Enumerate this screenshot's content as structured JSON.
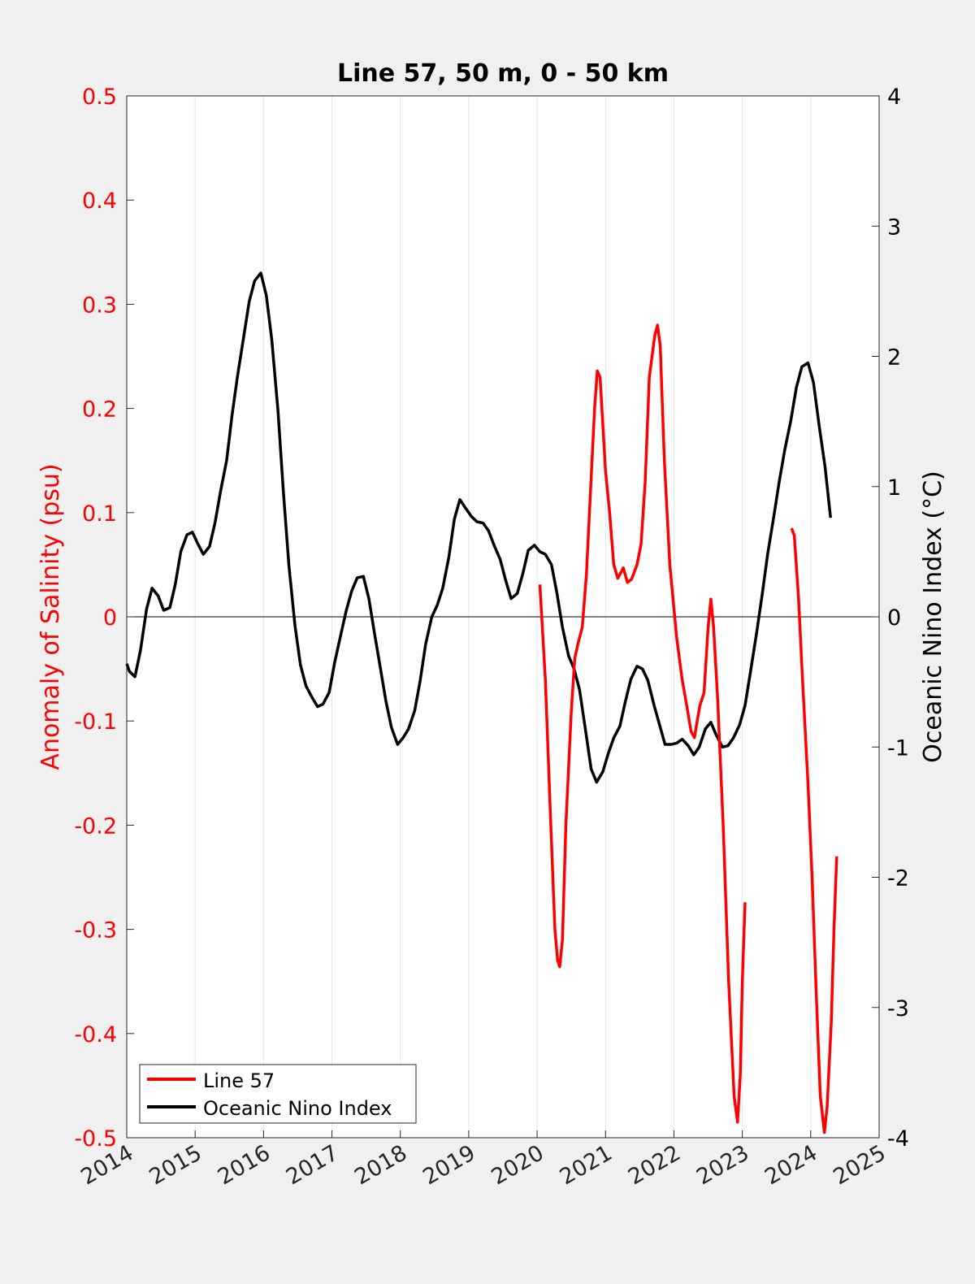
{
  "chart_data": {
    "type": "line",
    "title": "Line 57, 50 m, 0 - 50 km",
    "xlim": [
      2014,
      2025
    ],
    "x_ticks": [
      "2014",
      "2015",
      "2016",
      "2017",
      "2018",
      "2019",
      "2020",
      "2021",
      "2022",
      "2023",
      "2024",
      "2025"
    ],
    "left_axis": {
      "label": "Anomaly of Salinity (psu)",
      "color": "#ff0000",
      "ylim": [
        -0.5,
        0.5
      ],
      "ticks": [
        0.5,
        0.4,
        0.3,
        0.2,
        0.1,
        0,
        -0.1,
        -0.2,
        -0.3,
        -0.4,
        -0.5
      ],
      "tick_labels": [
        "0.5",
        "0.4",
        "0.3",
        "0.2",
        "0.1",
        "0",
        "-0.1",
        "-0.2",
        "-0.3",
        "-0.4",
        "-0.5"
      ]
    },
    "right_axis": {
      "label": "Oceanic Nino Index (°C)",
      "color": "#000000",
      "ylim": [
        -4,
        4
      ],
      "ticks": [
        4,
        3,
        2,
        1,
        0,
        -1,
        -2,
        -3,
        -4
      ],
      "tick_labels": [
        "4",
        "3",
        "2",
        "1",
        "0",
        "-1",
        "-2",
        "-3",
        "-4"
      ]
    },
    "zero_line": true,
    "vertical_grid": true,
    "legend": {
      "position": "bottom-left",
      "entries": [
        {
          "label": "Line 57",
          "color": "#ff0000"
        },
        {
          "label": "Oceanic Nino Index",
          "color": "#000000"
        }
      ]
    },
    "series": [
      {
        "name": "Line 57",
        "axis": "left",
        "color": "#ff0000",
        "segments": [
          [
            [
              2020.04,
              0.031
            ],
            [
              2020.12,
              -0.06
            ],
            [
              2020.2,
              -0.2
            ],
            [
              2020.26,
              -0.3
            ],
            [
              2020.3,
              -0.33
            ],
            [
              2020.33,
              -0.336
            ],
            [
              2020.37,
              -0.31
            ],
            [
              2020.42,
              -0.2
            ],
            [
              2020.5,
              -0.09
            ],
            [
              2020.55,
              -0.04
            ],
            [
              2020.6,
              -0.025
            ],
            [
              2020.66,
              -0.01
            ],
            [
              2020.72,
              0.04
            ],
            [
              2020.78,
              0.12
            ],
            [
              2020.84,
              0.2
            ],
            [
              2020.88,
              0.236
            ],
            [
              2020.92,
              0.23
            ],
            [
              2021.0,
              0.14
            ],
            [
              2021.06,
              0.1
            ],
            [
              2021.12,
              0.05
            ],
            [
              2021.18,
              0.037
            ],
            [
              2021.26,
              0.047
            ],
            [
              2021.32,
              0.033
            ],
            [
              2021.38,
              0.036
            ],
            [
              2021.46,
              0.05
            ],
            [
              2021.52,
              0.07
            ],
            [
              2021.58,
              0.13
            ],
            [
              2021.64,
              0.23
            ],
            [
              2021.72,
              0.27
            ],
            [
              2021.76,
              0.28
            ],
            [
              2021.8,
              0.26
            ],
            [
              2021.86,
              0.15
            ],
            [
              2021.94,
              0.05
            ],
            [
              2022.04,
              -0.02
            ],
            [
              2022.12,
              -0.06
            ],
            [
              2022.2,
              -0.09
            ],
            [
              2022.25,
              -0.11
            ],
            [
              2022.3,
              -0.116
            ],
            [
              2022.34,
              -0.1
            ],
            [
              2022.38,
              -0.085
            ],
            [
              2022.44,
              -0.073
            ],
            [
              2022.5,
              -0.01
            ],
            [
              2022.54,
              0.017
            ],
            [
              2022.58,
              -0.01
            ],
            [
              2022.64,
              -0.08
            ],
            [
              2022.72,
              -0.2
            ],
            [
              2022.8,
              -0.35
            ],
            [
              2022.88,
              -0.46
            ],
            [
              2022.93,
              -0.485
            ],
            [
              2022.97,
              -0.44
            ],
            [
              2023.0,
              -0.35
            ],
            [
              2023.04,
              -0.274
            ]
          ],
          [
            [
              2023.72,
              0.085
            ],
            [
              2023.76,
              0.078
            ],
            [
              2023.82,
              0.02
            ],
            [
              2023.88,
              -0.06
            ],
            [
              2023.96,
              -0.16
            ],
            [
              2024.02,
              -0.25
            ],
            [
              2024.08,
              -0.36
            ],
            [
              2024.14,
              -0.46
            ],
            [
              2024.2,
              -0.495
            ],
            [
              2024.24,
              -0.47
            ],
            [
              2024.3,
              -0.39
            ],
            [
              2024.34,
              -0.3
            ],
            [
              2024.38,
              -0.23
            ]
          ]
        ]
      },
      {
        "name": "Oceanic Nino Index",
        "axis": "right",
        "color": "#000000",
        "points": [
          [
            2014.0,
            -0.36
          ],
          [
            2014.04,
            -0.42
          ],
          [
            2014.12,
            -0.46
          ],
          [
            2014.2,
            -0.26
          ],
          [
            2014.29,
            0.06
          ],
          [
            2014.37,
            0.22
          ],
          [
            2014.46,
            0.16
          ],
          [
            2014.54,
            0.05
          ],
          [
            2014.63,
            0.07
          ],
          [
            2014.71,
            0.25
          ],
          [
            2014.79,
            0.5
          ],
          [
            2014.88,
            0.63
          ],
          [
            2014.96,
            0.65
          ],
          [
            2015.04,
            0.56
          ],
          [
            2015.12,
            0.48
          ],
          [
            2015.21,
            0.54
          ],
          [
            2015.29,
            0.72
          ],
          [
            2015.37,
            0.96
          ],
          [
            2015.46,
            1.2
          ],
          [
            2015.54,
            1.55
          ],
          [
            2015.62,
            1.85
          ],
          [
            2015.71,
            2.15
          ],
          [
            2015.79,
            2.42
          ],
          [
            2015.87,
            2.58
          ],
          [
            2015.96,
            2.64
          ],
          [
            2016.04,
            2.47
          ],
          [
            2016.12,
            2.13
          ],
          [
            2016.21,
            1.59
          ],
          [
            2016.29,
            0.96
          ],
          [
            2016.37,
            0.4
          ],
          [
            2016.46,
            -0.07
          ],
          [
            2016.54,
            -0.37
          ],
          [
            2016.62,
            -0.53
          ],
          [
            2016.71,
            -0.62
          ],
          [
            2016.79,
            -0.69
          ],
          [
            2016.87,
            -0.67
          ],
          [
            2016.96,
            -0.58
          ],
          [
            2017.04,
            -0.35
          ],
          [
            2017.12,
            -0.16
          ],
          [
            2017.21,
            0.05
          ],
          [
            2017.29,
            0.2
          ],
          [
            2017.37,
            0.3
          ],
          [
            2017.46,
            0.31
          ],
          [
            2017.54,
            0.14
          ],
          [
            2017.62,
            -0.12
          ],
          [
            2017.71,
            -0.4
          ],
          [
            2017.79,
            -0.65
          ],
          [
            2017.87,
            -0.85
          ],
          [
            2017.96,
            -0.98
          ],
          [
            2018.04,
            -0.93
          ],
          [
            2018.12,
            -0.86
          ],
          [
            2018.21,
            -0.72
          ],
          [
            2018.29,
            -0.49
          ],
          [
            2018.37,
            -0.21
          ],
          [
            2018.46,
            0.0
          ],
          [
            2018.54,
            0.09
          ],
          [
            2018.62,
            0.22
          ],
          [
            2018.71,
            0.46
          ],
          [
            2018.79,
            0.75
          ],
          [
            2018.87,
            0.9
          ],
          [
            2018.96,
            0.83
          ],
          [
            2019.04,
            0.77
          ],
          [
            2019.12,
            0.73
          ],
          [
            2019.21,
            0.72
          ],
          [
            2019.29,
            0.66
          ],
          [
            2019.37,
            0.55
          ],
          [
            2019.46,
            0.44
          ],
          [
            2019.54,
            0.28
          ],
          [
            2019.62,
            0.14
          ],
          [
            2019.71,
            0.18
          ],
          [
            2019.79,
            0.33
          ],
          [
            2019.87,
            0.51
          ],
          [
            2019.96,
            0.55
          ],
          [
            2020.04,
            0.5
          ],
          [
            2020.12,
            0.48
          ],
          [
            2020.21,
            0.4
          ],
          [
            2020.29,
            0.18
          ],
          [
            2020.37,
            -0.08
          ],
          [
            2020.46,
            -0.3
          ],
          [
            2020.54,
            -0.4
          ],
          [
            2020.62,
            -0.56
          ],
          [
            2020.71,
            -0.88
          ],
          [
            2020.79,
            -1.17
          ],
          [
            2020.87,
            -1.27
          ],
          [
            2020.96,
            -1.19
          ],
          [
            2021.04,
            -1.05
          ],
          [
            2021.12,
            -0.93
          ],
          [
            2021.21,
            -0.84
          ],
          [
            2021.29,
            -0.65
          ],
          [
            2021.37,
            -0.48
          ],
          [
            2021.46,
            -0.38
          ],
          [
            2021.54,
            -0.4
          ],
          [
            2021.62,
            -0.49
          ],
          [
            2021.71,
            -0.68
          ],
          [
            2021.79,
            -0.83
          ],
          [
            2021.87,
            -0.98
          ],
          [
            2021.96,
            -0.98
          ],
          [
            2022.04,
            -0.97
          ],
          [
            2022.12,
            -0.94
          ],
          [
            2022.21,
            -0.99
          ],
          [
            2022.29,
            -1.06
          ],
          [
            2022.37,
            -1.0
          ],
          [
            2022.46,
            -0.86
          ],
          [
            2022.54,
            -0.81
          ],
          [
            2022.62,
            -0.91
          ],
          [
            2022.71,
            -1.0
          ],
          [
            2022.79,
            -0.99
          ],
          [
            2022.87,
            -0.93
          ],
          [
            2022.96,
            -0.83
          ],
          [
            2023.04,
            -0.68
          ],
          [
            2023.12,
            -0.42
          ],
          [
            2023.21,
            -0.12
          ],
          [
            2023.29,
            0.17
          ],
          [
            2023.37,
            0.48
          ],
          [
            2023.46,
            0.77
          ],
          [
            2023.54,
            1.04
          ],
          [
            2023.62,
            1.28
          ],
          [
            2023.71,
            1.51
          ],
          [
            2023.79,
            1.76
          ],
          [
            2023.87,
            1.92
          ],
          [
            2023.96,
            1.95
          ],
          [
            2024.04,
            1.8
          ],
          [
            2024.12,
            1.48
          ],
          [
            2024.21,
            1.15
          ],
          [
            2024.29,
            0.76
          ]
        ]
      }
    ]
  }
}
